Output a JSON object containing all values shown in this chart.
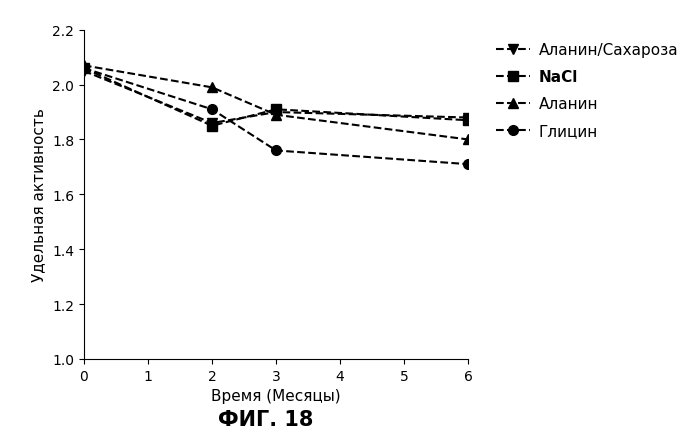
{
  "series": [
    {
      "label": "Аланин/Сахароза",
      "x": [
        0,
        2,
        3,
        6
      ],
      "y": [
        2.05,
        1.86,
        1.9,
        1.88
      ],
      "marker": "v",
      "linestyle": "--",
      "color": "#000000"
    },
    {
      "label": "NaCl",
      "x": [
        0,
        2,
        3,
        6
      ],
      "y": [
        2.06,
        1.85,
        1.91,
        1.87
      ],
      "marker": "s",
      "linestyle": "--",
      "color": "#000000"
    },
    {
      "label": "Аланин",
      "x": [
        0,
        2,
        3,
        6
      ],
      "y": [
        2.07,
        1.99,
        1.89,
        1.8
      ],
      "marker": "^",
      "linestyle": "--",
      "color": "#000000"
    },
    {
      "label": "Глицин",
      "x": [
        0,
        2,
        3,
        6
      ],
      "y": [
        2.06,
        1.91,
        1.76,
        1.71
      ],
      "marker": "o",
      "linestyle": "--",
      "color": "#000000"
    }
  ],
  "xlabel": "Время (Месяцы)",
  "ylabel": "Удельная активность",
  "xlim": [
    0,
    6
  ],
  "ylim": [
    1.0,
    2.2
  ],
  "xticks": [
    0,
    1,
    2,
    3,
    4,
    5,
    6
  ],
  "yticks": [
    1.0,
    1.2,
    1.4,
    1.6,
    1.8,
    2.0,
    2.2
  ],
  "figure_title": "ФИГ. 18",
  "background_color": "#ffffff",
  "marker_size": 7,
  "linewidth": 1.5,
  "bold_labels": [
    "NaCl"
  ]
}
